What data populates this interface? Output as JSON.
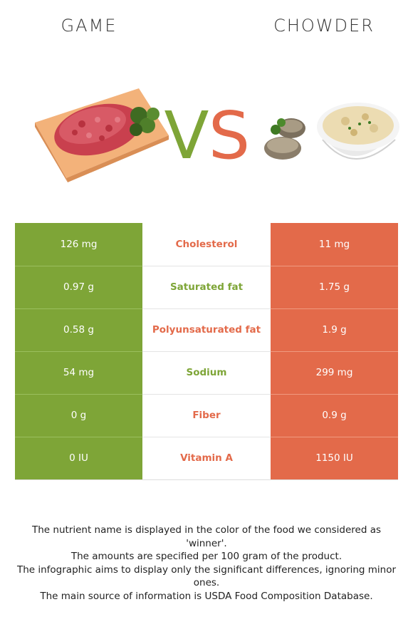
{
  "header": {
    "left_food": "GAME",
    "right_food": "CHOWDER",
    "vs_left_letter": "V",
    "vs_right_letter": "S"
  },
  "colors": {
    "left": "#7ea537",
    "right": "#e36a4a"
  },
  "images": {
    "left": "raw-ground-meat-on-cutting-board",
    "right": "bowl-of-clam-chowder-with-clams"
  },
  "rows": [
    {
      "nutrient": "Cholesterol",
      "left": "126 mg",
      "right": "11 mg",
      "winner": "right"
    },
    {
      "nutrient": "Saturated fat",
      "left": "0.97 g",
      "right": "1.75 g",
      "winner": "left"
    },
    {
      "nutrient": "Polyunsaturated fat",
      "left": "0.58 g",
      "right": "1.9 g",
      "winner": "right"
    },
    {
      "nutrient": "Sodium",
      "left": "54 mg",
      "right": "299 mg",
      "winner": "left"
    },
    {
      "nutrient": "Fiber",
      "left": "0 g",
      "right": "0.9 g",
      "winner": "right"
    },
    {
      "nutrient": "Vitamin A",
      "left": "0 IU",
      "right": "1150 IU",
      "winner": "right"
    }
  ],
  "notes": [
    "The nutrient name is displayed in the color of the food we considered as 'winner'.",
    "The amounts are specified per 100 gram of the product.",
    "The infographic aims to display only the significant differences, ignoring minor ones.",
    "The main source of information is USDA Food Composition Database."
  ]
}
